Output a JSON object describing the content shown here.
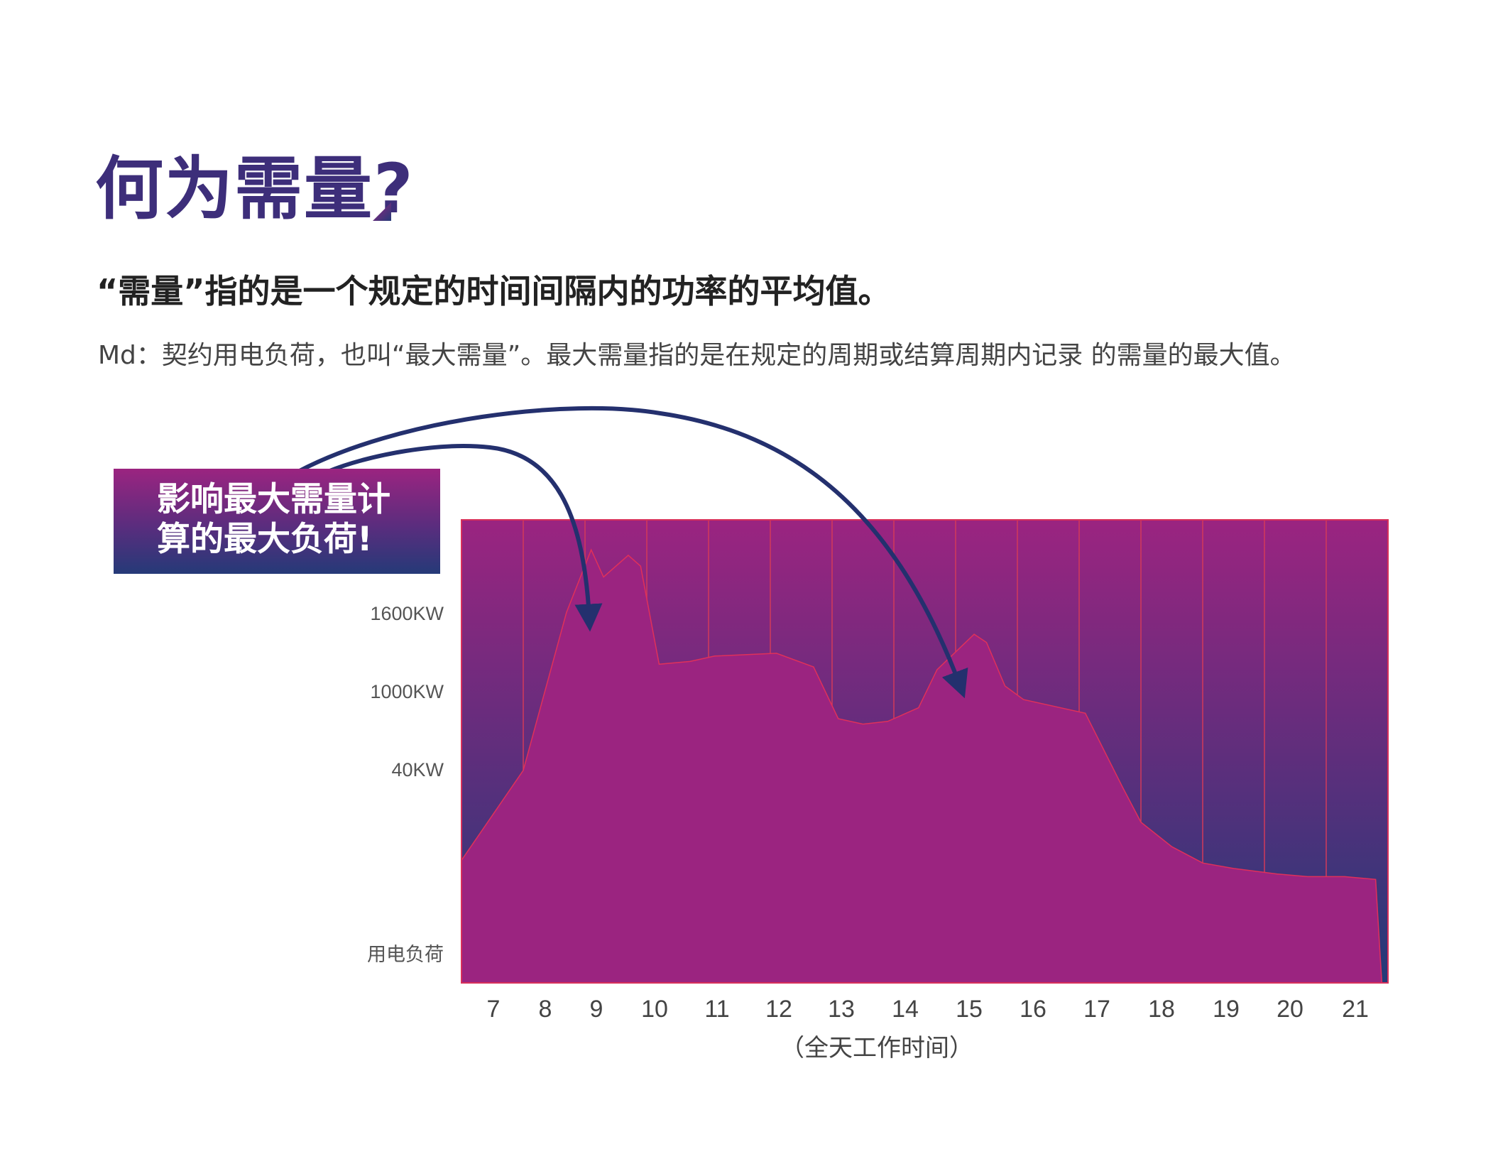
{
  "title": "何为需量?",
  "subtitle": "“需量”指的是一个规定的时间间隔内的功率的平均值。",
  "description": "Md：契约用电负荷，也叫“最大需量”。最大需量指的是在规定的周期或结算周期内记录 的需量的最大值。",
  "callout": {
    "line1": "影响最大需量计",
    "line2": "算的最大负荷!"
  },
  "colors": {
    "magenta": "#9b2480",
    "navy": "#253a78",
    "area_fill": "#9b2480",
    "grid_line": "#d23a5a",
    "arrow": "#24306e"
  },
  "chart_data": {
    "type": "area",
    "xlabel": "（全天工作时间）",
    "ylabel": "用电负荷",
    "x_ticks": [
      "7",
      "8",
      "9",
      "10",
      "11",
      "12",
      "13",
      "14",
      "15",
      "16",
      "17",
      "18",
      "19",
      "20",
      "21"
    ],
    "y_ticks": [
      "1600KW",
      "1000KW",
      "40KW"
    ],
    "xlim": [
      6.5,
      21.5
    ],
    "ylim": [
      0,
      1700
    ],
    "grid": "vertical",
    "series": [
      {
        "x": [
          6.5,
          7.5,
          8.2,
          8.6,
          8.8,
          9.2,
          9.4,
          9.7,
          10.2,
          10.6,
          11.6,
          12.2,
          12.6,
          13.0,
          13.4,
          13.9,
          14.2,
          14.8,
          15.0,
          15.3,
          15.6,
          16.6,
          17.2,
          17.5,
          18.0,
          18.5,
          19.0,
          19.7,
          20.2,
          20.8,
          21.3,
          21.4
        ],
        "y": [
          450,
          780,
          1360,
          1590,
          1490,
          1570,
          1530,
          1170,
          1180,
          1200,
          1210,
          1160,
          970,
          950,
          960,
          1010,
          1150,
          1280,
          1250,
          1090,
          1040,
          990,
          720,
          590,
          500,
          440,
          420,
          400,
          390,
          390,
          380,
          0
        ]
      }
    ],
    "annotations": [
      {
        "label": "影响最大需量计算的最大负荷!",
        "targets_x": [
          8.8,
          14.8
        ]
      }
    ]
  }
}
